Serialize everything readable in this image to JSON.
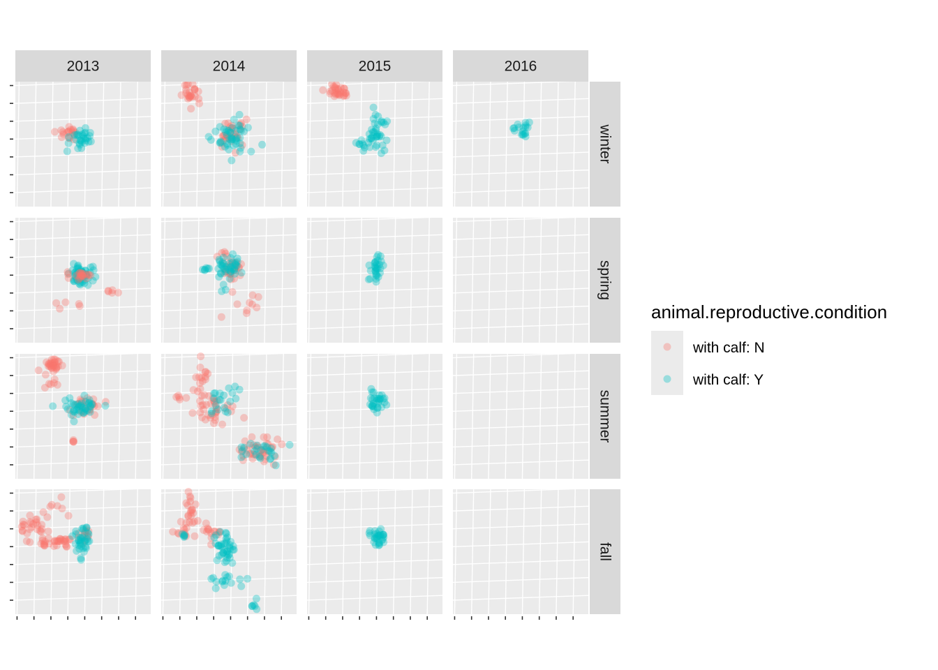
{
  "chart_data": {
    "type": "scatter",
    "facet_columns": [
      "2013",
      "2014",
      "2015",
      "2016"
    ],
    "facet_rows": [
      "winter",
      "spring",
      "summer",
      "fall"
    ],
    "legend": {
      "title": "animal.reproductive.condition",
      "placement": "right",
      "entries": [
        {
          "label": "with calf: N",
          "color": "#F8766D"
        },
        {
          "label": "with calf: Y",
          "color": "#00BFC4"
        }
      ]
    },
    "x_axis": {
      "tick_labels_visible": false,
      "tick_count": 8
    },
    "y_axis": {
      "tick_labels_visible": false,
      "tick_count": 7
    },
    "grid": true,
    "point_alpha": 0.35,
    "clusters": [
      {
        "col": 0,
        "row": 0,
        "series": "N",
        "cx": 0.38,
        "cy": 0.42,
        "sx": 0.05,
        "sy": 0.03,
        "n": 18
      },
      {
        "col": 0,
        "row": 0,
        "series": "Y",
        "cx": 0.48,
        "cy": 0.46,
        "sx": 0.04,
        "sy": 0.05,
        "n": 30
      },
      {
        "col": 1,
        "row": 0,
        "series": "N",
        "cx": 0.22,
        "cy": 0.09,
        "sx": 0.03,
        "sy": 0.05,
        "n": 25
      },
      {
        "col": 1,
        "row": 0,
        "series": "N",
        "cx": 0.52,
        "cy": 0.43,
        "sx": 0.06,
        "sy": 0.07,
        "n": 30
      },
      {
        "col": 1,
        "row": 0,
        "series": "Y",
        "cx": 0.52,
        "cy": 0.45,
        "sx": 0.07,
        "sy": 0.07,
        "n": 45
      },
      {
        "col": 2,
        "row": 0,
        "series": "N",
        "cx": 0.23,
        "cy": 0.08,
        "sx": 0.04,
        "sy": 0.03,
        "n": 30
      },
      {
        "col": 2,
        "row": 0,
        "series": "Y",
        "cx": 0.52,
        "cy": 0.42,
        "sx": 0.04,
        "sy": 0.1,
        "n": 35
      },
      {
        "col": 2,
        "row": 0,
        "series": "Y",
        "cx": 0.42,
        "cy": 0.5,
        "sx": 0.03,
        "sy": 0.02,
        "n": 10
      },
      {
        "col": 3,
        "row": 0,
        "series": "Y",
        "cx": 0.52,
        "cy": 0.37,
        "sx": 0.03,
        "sy": 0.04,
        "n": 18
      },
      {
        "col": 0,
        "row": 1,
        "series": "Y",
        "cx": 0.49,
        "cy": 0.46,
        "sx": 0.04,
        "sy": 0.04,
        "n": 60
      },
      {
        "col": 0,
        "row": 1,
        "series": "N",
        "cx": 0.49,
        "cy": 0.46,
        "sx": 0.04,
        "sy": 0.03,
        "n": 20
      },
      {
        "col": 0,
        "row": 1,
        "series": "N",
        "cx": 0.71,
        "cy": 0.6,
        "sx": 0.04,
        "sy": 0.02,
        "n": 5
      },
      {
        "col": 0,
        "row": 1,
        "series": "N",
        "cx": 0.45,
        "cy": 0.7,
        "sx": 0.08,
        "sy": 0.03,
        "n": 5
      },
      {
        "col": 1,
        "row": 1,
        "series": "N",
        "cx": 0.51,
        "cy": 0.38,
        "sx": 0.06,
        "sy": 0.06,
        "n": 30
      },
      {
        "col": 1,
        "row": 1,
        "series": "Y",
        "cx": 0.5,
        "cy": 0.42,
        "sx": 0.05,
        "sy": 0.06,
        "n": 40
      },
      {
        "col": 1,
        "row": 1,
        "series": "Y",
        "cx": 0.34,
        "cy": 0.41,
        "sx": 0.02,
        "sy": 0.01,
        "n": 6
      },
      {
        "col": 1,
        "row": 1,
        "series": "N",
        "cx": 0.65,
        "cy": 0.7,
        "sx": 0.08,
        "sy": 0.06,
        "n": 10
      },
      {
        "col": 2,
        "row": 1,
        "series": "Y",
        "cx": 0.51,
        "cy": 0.38,
        "sx": 0.03,
        "sy": 0.06,
        "n": 30
      },
      {
        "col": 0,
        "row": 2,
        "series": "N",
        "cx": 0.28,
        "cy": 0.1,
        "sx": 0.04,
        "sy": 0.03,
        "n": 30
      },
      {
        "col": 0,
        "row": 2,
        "series": "N",
        "cx": 0.28,
        "cy": 0.25,
        "sx": 0.03,
        "sy": 0.04,
        "n": 6
      },
      {
        "col": 0,
        "row": 2,
        "series": "N",
        "cx": 0.52,
        "cy": 0.42,
        "sx": 0.05,
        "sy": 0.04,
        "n": 25
      },
      {
        "col": 0,
        "row": 2,
        "series": "Y",
        "cx": 0.48,
        "cy": 0.42,
        "sx": 0.07,
        "sy": 0.04,
        "n": 40
      },
      {
        "col": 0,
        "row": 2,
        "series": "N",
        "cx": 0.43,
        "cy": 0.7,
        "sx": 0.005,
        "sy": 0.005,
        "n": 4
      },
      {
        "col": 1,
        "row": 2,
        "series": "N",
        "cx": 0.3,
        "cy": 0.2,
        "sx": 0.04,
        "sy": 0.06,
        "n": 15
      },
      {
        "col": 1,
        "row": 2,
        "series": "N",
        "cx": 0.38,
        "cy": 0.45,
        "sx": 0.08,
        "sy": 0.06,
        "n": 35
      },
      {
        "col": 1,
        "row": 2,
        "series": "Y",
        "cx": 0.45,
        "cy": 0.38,
        "sx": 0.06,
        "sy": 0.06,
        "n": 20
      },
      {
        "col": 1,
        "row": 2,
        "series": "N",
        "cx": 0.72,
        "cy": 0.76,
        "sx": 0.08,
        "sy": 0.05,
        "n": 40
      },
      {
        "col": 1,
        "row": 2,
        "series": "Y",
        "cx": 0.74,
        "cy": 0.8,
        "sx": 0.09,
        "sy": 0.06,
        "n": 25
      },
      {
        "col": 1,
        "row": 2,
        "series": "N",
        "cx": 0.15,
        "cy": 0.35,
        "sx": 0.03,
        "sy": 0.01,
        "n": 5
      },
      {
        "col": 2,
        "row": 2,
        "series": "Y",
        "cx": 0.52,
        "cy": 0.38,
        "sx": 0.03,
        "sy": 0.04,
        "n": 30
      },
      {
        "col": 0,
        "row": 3,
        "series": "N",
        "cx": 0.13,
        "cy": 0.32,
        "sx": 0.04,
        "sy": 0.06,
        "n": 25
      },
      {
        "col": 0,
        "row": 3,
        "series": "N",
        "cx": 0.3,
        "cy": 0.42,
        "sx": 0.09,
        "sy": 0.02,
        "n": 30
      },
      {
        "col": 0,
        "row": 3,
        "series": "N",
        "cx": 0.28,
        "cy": 0.16,
        "sx": 0.05,
        "sy": 0.05,
        "n": 8
      },
      {
        "col": 0,
        "row": 3,
        "series": "N",
        "cx": 0.52,
        "cy": 0.4,
        "sx": 0.04,
        "sy": 0.05,
        "n": 12
      },
      {
        "col": 0,
        "row": 3,
        "series": "Y",
        "cx": 0.49,
        "cy": 0.41,
        "sx": 0.03,
        "sy": 0.06,
        "n": 35
      },
      {
        "col": 1,
        "row": 3,
        "series": "N",
        "cx": 0.23,
        "cy": 0.18,
        "sx": 0.03,
        "sy": 0.07,
        "n": 20
      },
      {
        "col": 1,
        "row": 3,
        "series": "N",
        "cx": 0.15,
        "cy": 0.33,
        "sx": 0.05,
        "sy": 0.03,
        "n": 10
      },
      {
        "col": 1,
        "row": 3,
        "series": "N",
        "cx": 0.35,
        "cy": 0.33,
        "sx": 0.05,
        "sy": 0.04,
        "n": 15
      },
      {
        "col": 1,
        "row": 3,
        "series": "Y",
        "cx": 0.17,
        "cy": 0.37,
        "sx": 0.02,
        "sy": 0.01,
        "n": 5
      },
      {
        "col": 1,
        "row": 3,
        "series": "Y",
        "cx": 0.48,
        "cy": 0.48,
        "sx": 0.04,
        "sy": 0.07,
        "n": 40
      },
      {
        "col": 1,
        "row": 3,
        "series": "Y",
        "cx": 0.48,
        "cy": 0.72,
        "sx": 0.06,
        "sy": 0.03,
        "n": 15
      },
      {
        "col": 1,
        "row": 3,
        "series": "Y",
        "cx": 0.69,
        "cy": 0.92,
        "sx": 0.02,
        "sy": 0.05,
        "n": 6
      },
      {
        "col": 2,
        "row": 3,
        "series": "Y",
        "cx": 0.52,
        "cy": 0.38,
        "sx": 0.03,
        "sy": 0.04,
        "n": 30
      }
    ]
  }
}
